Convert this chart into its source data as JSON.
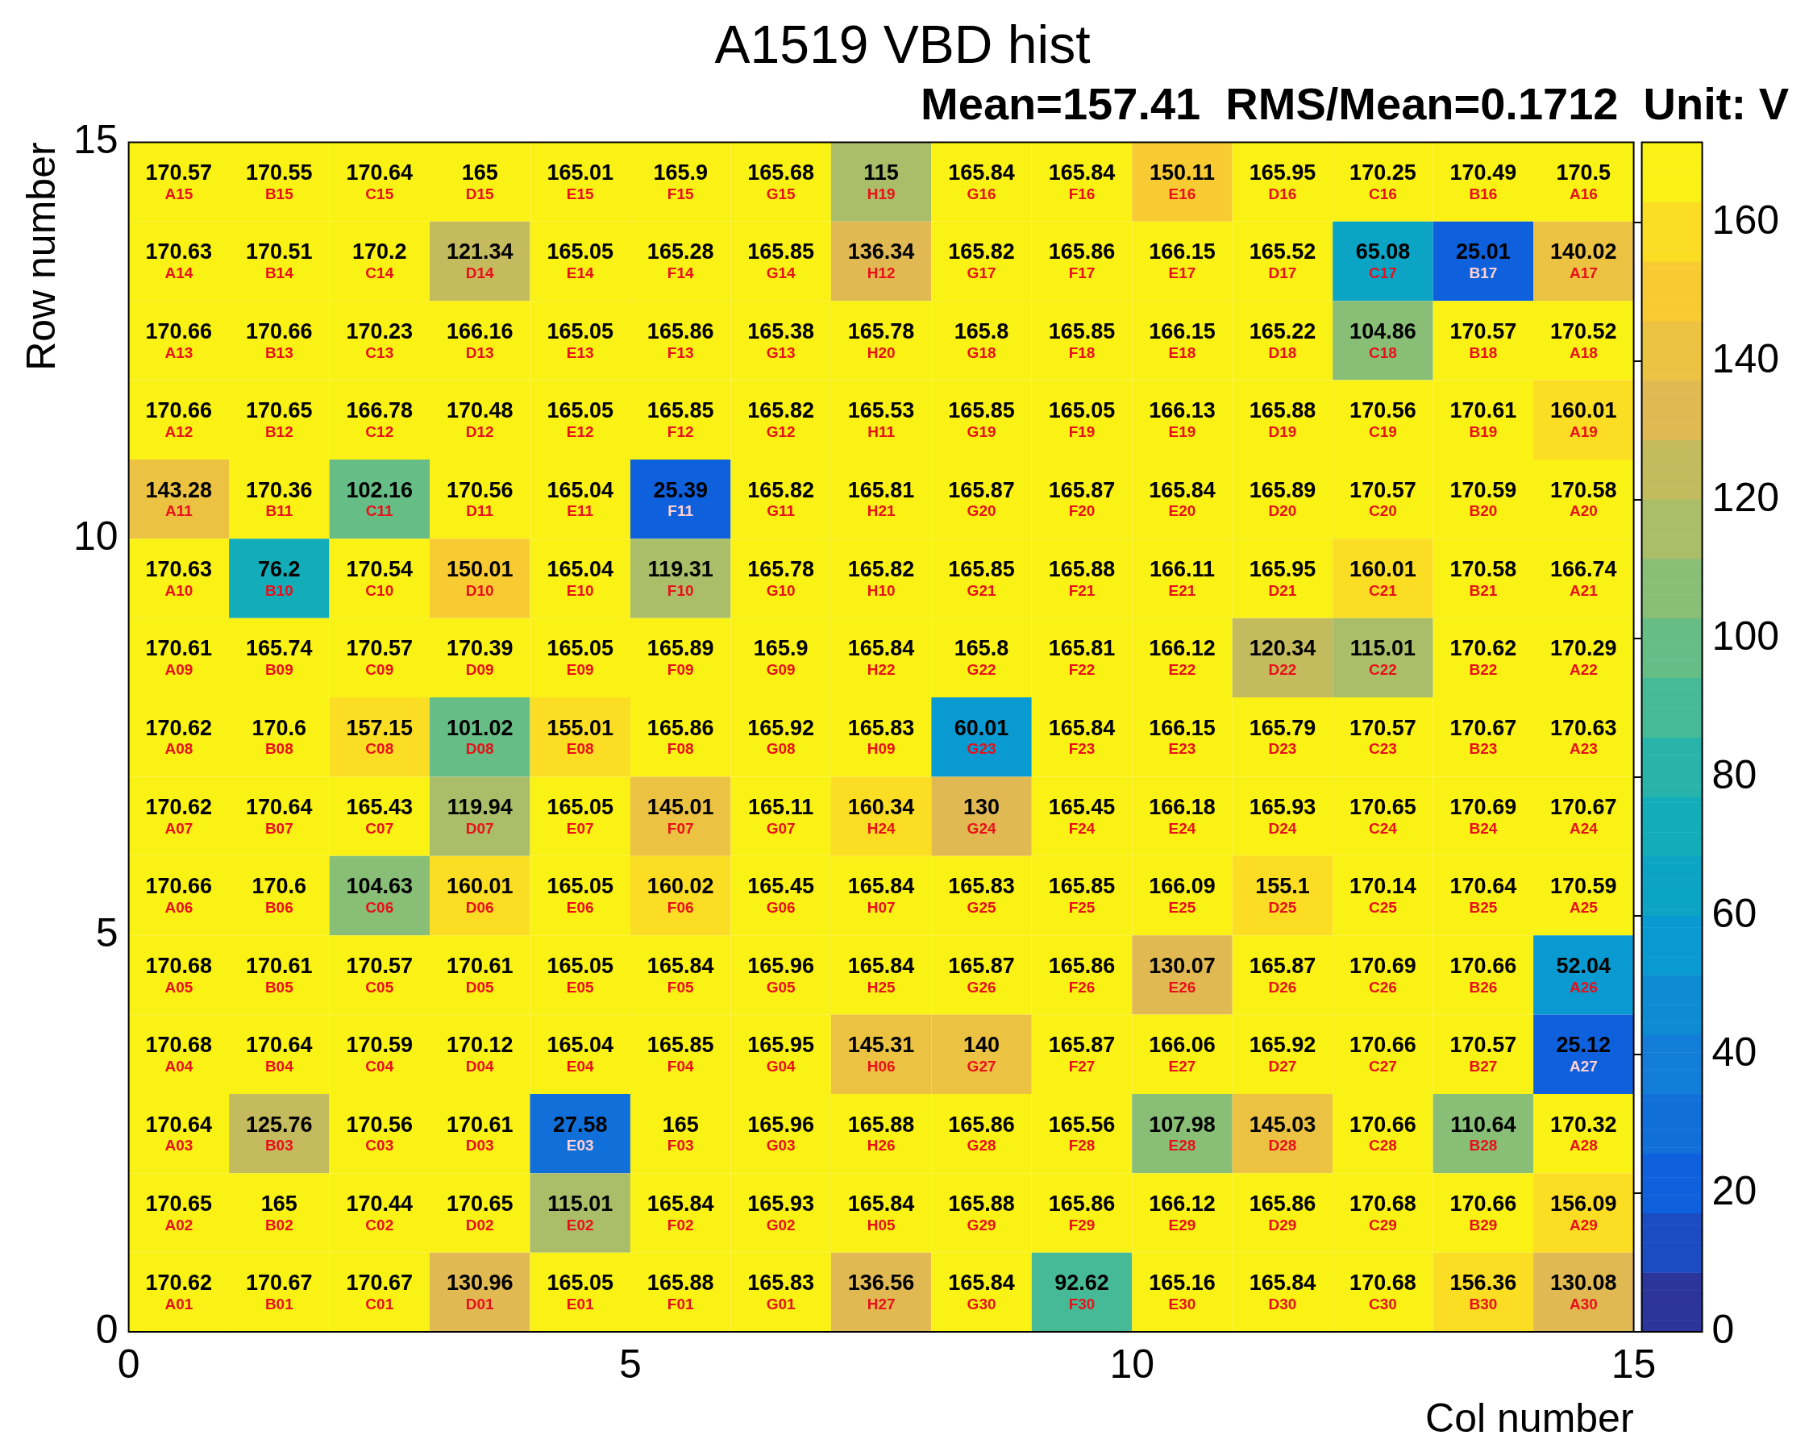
{
  "chart_data": {
    "type": "heatmap",
    "title": "A1519 VBD hist",
    "subtitle": "Mean=157.41  RMS/Mean=0.1712  Unit: V",
    "xlabel": "Col number",
    "ylabel": "Row number",
    "xlim": [
      0,
      15
    ],
    "xticks": [
      0,
      5,
      10,
      15
    ],
    "ylim": [
      0,
      15
    ],
    "yticks": [
      0,
      5,
      10,
      15
    ],
    "clim": [
      0,
      171.6
    ],
    "cticks": [
      0,
      20,
      40,
      60,
      80,
      100,
      120,
      140,
      160
    ],
    "grid": false,
    "legend": false,
    "cells": [
      [
        170.57,
        170.55,
        170.64,
        165,
        165.01,
        165.9,
        165.68,
        115,
        165.84,
        165.84,
        150.11,
        165.95,
        170.25,
        170.49,
        170.5
      ],
      [
        170.63,
        170.51,
        170.2,
        121.34,
        165.05,
        165.28,
        165.85,
        136.34,
        165.82,
        165.86,
        166.15,
        165.52,
        65.08,
        25.01,
        140.02
      ],
      [
        170.66,
        170.66,
        170.23,
        166.16,
        165.05,
        165.86,
        165.38,
        165.78,
        165.8,
        165.85,
        166.15,
        165.22,
        104.86,
        170.57,
        170.52
      ],
      [
        170.66,
        170.65,
        166.78,
        170.48,
        165.05,
        165.85,
        165.82,
        165.53,
        165.85,
        165.05,
        166.13,
        165.88,
        170.56,
        170.61,
        160.01
      ],
      [
        143.28,
        170.36,
        102.16,
        170.56,
        165.04,
        25.39,
        165.82,
        165.81,
        165.87,
        165.87,
        165.84,
        165.89,
        170.57,
        170.59,
        170.58
      ],
      [
        170.63,
        76.2,
        170.54,
        150.01,
        165.04,
        119.31,
        165.78,
        165.82,
        165.85,
        165.88,
        166.11,
        165.95,
        160.01,
        170.58,
        166.74
      ],
      [
        170.61,
        165.74,
        170.57,
        170.39,
        165.05,
        165.89,
        165.9,
        165.84,
        165.8,
        165.81,
        166.12,
        120.34,
        115.01,
        170.62,
        170.29
      ],
      [
        170.62,
        170.6,
        157.15,
        101.02,
        155.01,
        165.86,
        165.92,
        165.83,
        60.01,
        165.84,
        166.15,
        165.79,
        170.57,
        170.67,
        170.63
      ],
      [
        170.62,
        170.64,
        165.43,
        119.94,
        165.05,
        145.01,
        165.11,
        160.34,
        130,
        165.45,
        166.18,
        165.93,
        170.65,
        170.69,
        170.67
      ],
      [
        170.66,
        170.6,
        104.63,
        160.01,
        165.05,
        160.02,
        165.45,
        165.84,
        165.83,
        165.85,
        166.09,
        155.1,
        170.14,
        170.64,
        170.59
      ],
      [
        170.68,
        170.61,
        170.57,
        170.61,
        165.05,
        165.84,
        165.96,
        165.84,
        165.87,
        165.86,
        130.07,
        165.87,
        170.69,
        170.66,
        52.04
      ],
      [
        170.68,
        170.64,
        170.59,
        170.12,
        165.04,
        165.85,
        165.95,
        145.31,
        140,
        165.87,
        166.06,
        165.92,
        170.66,
        170.57,
        25.12
      ],
      [
        170.64,
        125.76,
        170.56,
        170.61,
        27.58,
        165,
        165.96,
        165.88,
        165.86,
        165.56,
        107.98,
        145.03,
        170.66,
        110.64,
        170.32
      ],
      [
        170.65,
        165,
        170.44,
        170.65,
        115.01,
        165.84,
        165.93,
        165.84,
        165.88,
        165.86,
        166.12,
        165.86,
        170.68,
        170.66,
        156.09
      ],
      [
        170.62,
        170.67,
        170.67,
        130.96,
        165.05,
        165.88,
        165.83,
        136.56,
        165.84,
        92.62,
        165.16,
        165.84,
        170.68,
        156.36,
        130.08
      ]
    ],
    "cell_labels": [
      [
        "170.57\nA15",
        "170.55\nB15",
        "170.64\nC15",
        "165\nD15",
        "165.01\nE15",
        "165.9\nF15",
        "165.68\nG15",
        "115\nH19",
        "165.84\nG16",
        "165.84\nF16",
        "150.11\nE16",
        "165.95\nD16",
        "170.25\nC16",
        "170.49\nB16",
        "170.5\nA16"
      ],
      [
        "170.63\nA14",
        "170.51\nB14",
        "170.2\nC14",
        "121.34\nD14",
        "165.05\nE14",
        "165.28\nF14",
        "165.85\nG14",
        "136.34\nH12",
        "165.82\nG17",
        "165.86\nF17",
        "166.15\nE17",
        "165.52\nD17",
        "65.08\nC17",
        "25.01\nB17",
        "140.02\nA17"
      ],
      [
        "170.66\nA13",
        "170.66\nB13",
        "170.23\nC13",
        "166.16\nD13",
        "165.05\nE13",
        "165.86\nF13",
        "165.38\nG13",
        "165.78\nH20",
        "165.8\nG18",
        "165.85\nF18",
        "166.15\nE18",
        "165.22\nD18",
        "104.86\nC18",
        "170.57\nB18",
        "170.52\nA18"
      ],
      [
        "170.66\nA12",
        "170.65\nB12",
        "166.78\nC12",
        "170.48\nD12",
        "165.05\nE12",
        "165.85\nF12",
        "165.82\nG12",
        "165.53\nH11",
        "165.85\nG19",
        "165.05\nF19",
        "166.13\nE19",
        "165.88\nD19",
        "170.56\nC19",
        "170.61\nB19",
        "160.01\nA19"
      ],
      [
        "143.28\nA11",
        "170.36\nB11",
        "102.16\nC11",
        "170.56\nD11",
        "165.04\nE11",
        "25.39\nF11",
        "165.82\nG11",
        "165.81\nH21",
        "165.87\nG20",
        "165.87\nF20",
        "165.84\nE20",
        "165.89\nD20",
        "170.57\nC20",
        "170.59\nB20",
        "170.58\nA20"
      ],
      [
        "170.63\nA10",
        "76.2\nB10",
        "170.54\nC10",
        "150.01\nD10",
        "165.04\nE10",
        "119.31\nF10",
        "165.78\nG10",
        "165.82\nH10",
        "165.85\nG21",
        "165.88\nF21",
        "166.11\nE21",
        "165.95\nD21",
        "160.01\nC21",
        "170.58\nB21",
        "166.74\nA21"
      ],
      [
        "170.61\nA09",
        "165.74\nB09",
        "170.57\nC09",
        "170.39\nD09",
        "165.05\nE09",
        "165.89\nF09",
        "165.9\nG09",
        "165.84\nH22",
        "165.8\nG22",
        "165.81\nF22",
        "166.12\nE22",
        "120.34\nD22",
        "115.01\nC22",
        "170.62\nB22",
        "170.29\nA22"
      ],
      [
        "170.62\nA08",
        "170.6\nB08",
        "157.15\nC08",
        "101.02\nD08",
        "155.01\nE08",
        "165.86\nF08",
        "165.92\nG08",
        "165.83\nH09",
        "60.01\nG23",
        "165.84\nF23",
        "166.15\nE23",
        "165.79\nD23",
        "170.57\nC23",
        "170.67\nB23",
        "170.63\nA23"
      ],
      [
        "170.62\nA07",
        "170.64\nB07",
        "165.43\nC07",
        "119.94\nD07",
        "165.05\nE07",
        "145.01\nF07",
        "165.11\nG07",
        "160.34\nH24",
        "130\nG24",
        "165.45\nF24",
        "166.18\nE24",
        "165.93\nD24",
        "170.65\nC24",
        "170.69\nB24",
        "170.67\nA24"
      ],
      [
        "170.66\nA06",
        "170.6\nB06",
        "104.63\nC06",
        "160.01\nD06",
        "165.05\nE06",
        "160.02\nF06",
        "165.45\nG06",
        "165.84\nH07",
        "165.83\nG25",
        "165.85\nF25",
        "166.09\nE25",
        "155.1\nD25",
        "170.14\nC25",
        "170.64\nB25",
        "170.59\nA25"
      ],
      [
        "170.68\nA05",
        "170.61\nB05",
        "170.57\nC05",
        "170.61\nD05",
        "165.05\nE05",
        "165.84\nF05",
        "165.96\nG05",
        "165.84\nH25",
        "165.87\nG26",
        "165.86\nF26",
        "130.07\nE26",
        "165.87\nD26",
        "170.69\nC26",
        "170.66\nB26",
        "52.04\nA26"
      ],
      [
        "170.68\nA04",
        "170.64\nB04",
        "170.59\nC04",
        "170.12\nD04",
        "165.04\nE04",
        "165.85\nF04",
        "165.95\nG04",
        "145.31\nH06",
        "140\nG27",
        "165.87\nF27",
        "166.06\nE27",
        "165.92\nD27",
        "170.66\nC27",
        "170.57\nB27",
        "25.12\nA27"
      ],
      [
        "170.64\nA03",
        "125.76\nB03",
        "170.56\nC03",
        "170.61\nD03",
        "27.58\nE03",
        "165\nF03",
        "165.96\nG03",
        "165.88\nH26",
        "165.86\nG28",
        "165.56\nF28",
        "107.98\nE28",
        "145.03\nD28",
        "170.66\nC28",
        "110.64\nB28",
        "170.32\nA28"
      ],
      [
        "170.65\nA02",
        "165\nB02",
        "170.44\nC02",
        "170.65\nD02",
        "115.01\nE02",
        "165.84\nF02",
        "165.93\nG02",
        "165.84\nH05",
        "165.88\nG29",
        "165.86\nF29",
        "166.12\nE29",
        "165.86\nD29",
        "170.68\nC29",
        "170.66\nB29",
        "156.09\nA29"
      ],
      [
        "170.62\nA01",
        "170.67\nB01",
        "170.67\nC01",
        "130.96\nD01",
        "165.05\nE01",
        "165.88\nF01",
        "165.83\nG01",
        "136.56\nH27",
        "165.84\nG30",
        "92.62\nF30",
        "165.16\nE30",
        "165.84\nD30",
        "170.68\nC30",
        "156.36\nB30",
        "130.08\nA30"
      ]
    ]
  }
}
